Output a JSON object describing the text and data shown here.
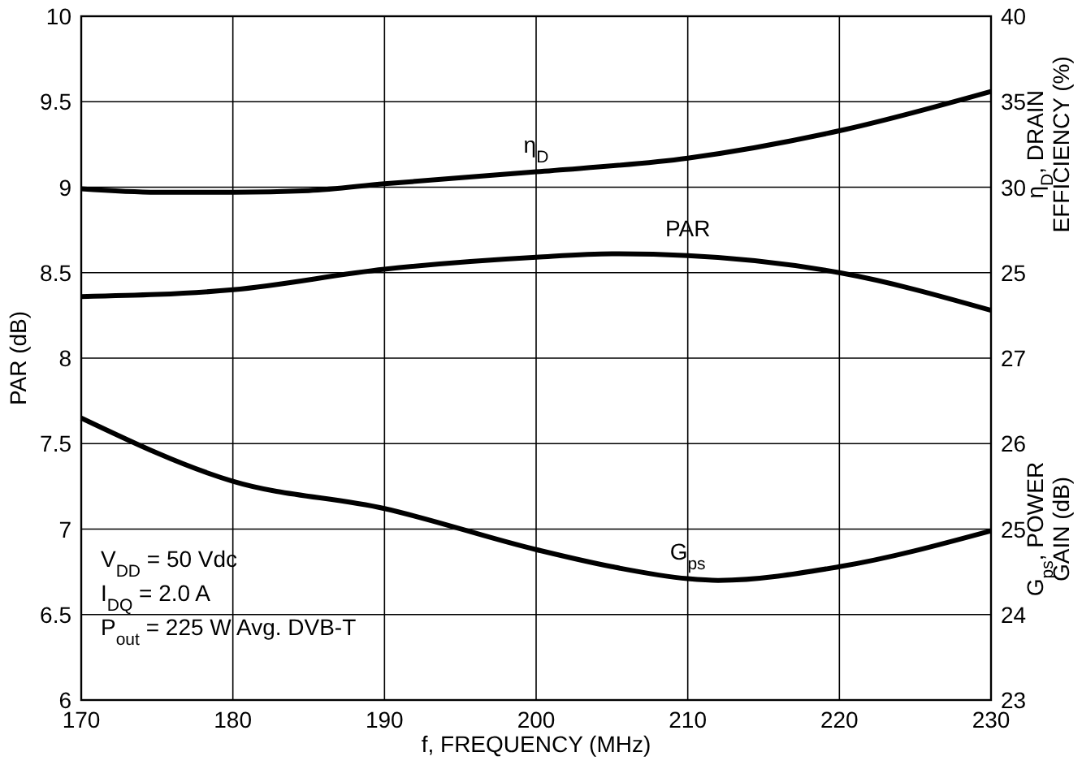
{
  "chart_data": {
    "type": "line",
    "xlabel": "f, FREQUENCY (MHz)",
    "ylabel": "PAR (dB)",
    "y2label": "η$_{D}$, DRAIN EFFICIENCY (%)",
    "y3label": "G$_{ps}$, POWER GAIN (dB)",
    "xlim": [
      170,
      230
    ],
    "xticks": [
      170,
      180,
      190,
      200,
      210,
      220,
      230
    ],
    "ylim": [
      6,
      10
    ],
    "yticks": [
      6,
      6.5,
      7,
      7.5,
      8,
      8.5,
      9,
      9.5,
      10
    ],
    "y2lim": [
      0,
      40
    ],
    "y2ticks": [
      25,
      30,
      35,
      40
    ],
    "y3lim": [
      23,
      31
    ],
    "y3ticks": [
      23,
      24,
      25,
      26,
      27
    ],
    "grid": true,
    "line_style": "solid",
    "marker": "none",
    "series": [
      {
        "name": "η$_{D}$",
        "color": "#000000",
        "axis": "y2",
        "x": [
          170,
          175,
          180,
          185,
          190,
          200,
          210,
          220,
          230
        ],
        "values": [
          29.9,
          29.7,
          29.7,
          29.8,
          30.2,
          30.9,
          31.7,
          33.3,
          35.6
        ]
      },
      {
        "name": "PAR",
        "color": "#000000",
        "axis": "y",
        "x": [
          170,
          180,
          190,
          200,
          205,
          210,
          220,
          230
        ],
        "values": [
          8.36,
          8.4,
          8.52,
          8.59,
          8.61,
          8.6,
          8.5,
          8.28
        ]
      },
      {
        "name": "G$_{ps}$",
        "color": "#000000",
        "axis": "y3",
        "x": [
          170,
          180,
          190,
          200,
          205,
          210,
          212,
          220,
          230
        ],
        "values": [
          26.3,
          25.56,
          25.24,
          24.76,
          24.56,
          24.42,
          24.4,
          24.56,
          24.98
        ]
      }
    ],
    "annotations": [
      "V$_{DD}$ = 50 Vdc",
      "I$_{DQ}$ = 2.0 A",
      "P$_{out}$ = 225 W Avg. DVB-T"
    ]
  }
}
